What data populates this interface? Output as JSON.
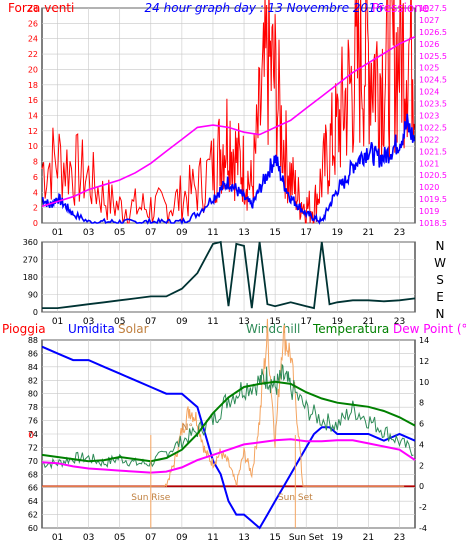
{
  "colors": {
    "background": "#ffffff",
    "frame": "#000000",
    "grid": "#c8c8c8",
    "wind": "#ff0000",
    "gust": "#0000ff",
    "pressure": "#ff00ff",
    "direction": "#003333",
    "pioggia": "#ff0000",
    "umidita": "#0000ff",
    "solar": "#f4a460",
    "windchill": "#2e8b57",
    "temperatura": "#008000",
    "dewpoint": "#ff00ff",
    "sun": "#f4a460"
  },
  "chart_data": [
    {
      "type": "line",
      "title": "24 hour graph day : 13 Novembre 2016",
      "ylabel_left": "Forza venti",
      "ylabel_right": "Pressione",
      "x_ticks": [
        "01",
        "03",
        "05",
        "07",
        "09",
        "11",
        "13",
        "15",
        "17",
        "19",
        "21",
        "23"
      ],
      "xlim": [
        0,
        24
      ],
      "ylim_left": [
        0,
        28
      ],
      "ylim_right": [
        1018.5,
        1027.5
      ],
      "yticks_left": [
        "0",
        "2",
        "4",
        "6",
        "8",
        "10",
        "12",
        "14",
        "16",
        "18",
        "20",
        "22",
        "24",
        "26",
        "28"
      ],
      "yticks_right": [
        "1018.5",
        "1019",
        "1019.5",
        "1020",
        "1020.5",
        "1021",
        "1021.5",
        "1022",
        "1022.5",
        "1023",
        "1023.5",
        "1024",
        "1024.5",
        "1025",
        "1025.5",
        "1026",
        "1026.5",
        "1027",
        "1027.5"
      ],
      "series": [
        {
          "name": "Forza venti",
          "axis": "left",
          "style": "spiky",
          "x": [
            0,
            1,
            2,
            3,
            4,
            5,
            6,
            7,
            8,
            9,
            10,
            11,
            11.5,
            12,
            12.5,
            13,
            13.5,
            14,
            14.5,
            15,
            15.5,
            16,
            16.5,
            17,
            17.5,
            18,
            18.5,
            19,
            19.5,
            20,
            20.5,
            21,
            21.5,
            22,
            22.5,
            23,
            23.5,
            24
          ],
          "y": [
            5,
            6,
            5,
            4,
            2,
            1,
            1,
            1,
            1,
            2,
            3,
            5,
            7,
            9,
            6,
            5,
            3,
            10,
            16,
            14,
            8,
            4,
            2,
            1,
            1,
            4,
            7,
            9,
            12,
            14,
            16,
            17,
            15,
            15,
            16,
            17,
            18,
            17
          ]
        },
        {
          "name": "Raffica",
          "axis": "left",
          "style": "smooth",
          "x": [
            0,
            0.5,
            1,
            1.5,
            2,
            3,
            4,
            5,
            6,
            7,
            8,
            9,
            10,
            11,
            11.5,
            12,
            12.5,
            13,
            13.5,
            14,
            14.5,
            15,
            15.5,
            16,
            16.5,
            17,
            17.5,
            18,
            18.5,
            19,
            19.5,
            20,
            20.5,
            21,
            21.5,
            22,
            22.5,
            23,
            23.5,
            24
          ],
          "y": [
            3,
            2,
            3,
            2,
            1,
            0,
            0,
            0,
            0,
            0,
            0,
            0,
            1,
            3,
            4,
            5,
            4,
            3,
            2,
            4,
            6,
            8,
            5,
            3,
            2,
            1,
            0.5,
            0,
            2,
            4,
            5,
            7,
            8,
            9,
            8,
            8,
            9,
            10,
            12,
            10
          ]
        },
        {
          "name": "Pressione",
          "axis": "right",
          "style": "smooth",
          "x": [
            0,
            1,
            2,
            3,
            4,
            5,
            6,
            7,
            8,
            9,
            10,
            11,
            12,
            13,
            14,
            15,
            16,
            17,
            18,
            19,
            20,
            21,
            22,
            23,
            24
          ],
          "y": [
            1019.2,
            1019.4,
            1019.6,
            1019.9,
            1020.1,
            1020.3,
            1020.6,
            1021.0,
            1021.5,
            1022.0,
            1022.5,
            1022.6,
            1022.5,
            1022.3,
            1022.2,
            1022.5,
            1022.8,
            1023.3,
            1023.8,
            1024.3,
            1024.8,
            1025.2,
            1025.6,
            1026.0,
            1026.3
          ]
        }
      ]
    },
    {
      "type": "line",
      "ylabel_right": "N W S E N",
      "x_ticks": [
        "01",
        "03",
        "05",
        "07",
        "09",
        "11",
        "13",
        "15",
        "17",
        "19",
        "21",
        "23"
      ],
      "xlim": [
        0,
        24
      ],
      "ylim": [
        0,
        360
      ],
      "yticks": [
        "0",
        "90",
        "180",
        "270",
        "360"
      ],
      "series": [
        {
          "name": "Direzione vento",
          "x": [
            0,
            1,
            2,
            3,
            4,
            5,
            6,
            7,
            8,
            9,
            10,
            11,
            11.5,
            12,
            12.5,
            13,
            13.5,
            14,
            14.5,
            15,
            15.5,
            16,
            16.5,
            17,
            17.5,
            18,
            18.5,
            19,
            20,
            21,
            22,
            23,
            24
          ],
          "y": [
            20,
            20,
            30,
            40,
            50,
            60,
            70,
            80,
            80,
            120,
            200,
            350,
            360,
            30,
            350,
            340,
            20,
            360,
            40,
            30,
            40,
            50,
            40,
            30,
            20,
            360,
            40,
            50,
            60,
            60,
            55,
            60,
            70
          ]
        }
      ]
    },
    {
      "type": "line",
      "legend": [
        "Pioggia",
        "Umidita",
        "Solar",
        "Windchill",
        "Temperatura",
        "Dew Point (°C)"
      ],
      "x_ticks": [
        "01",
        "03",
        "05",
        "07",
        "09",
        "11",
        "13",
        "15",
        "Sun Set",
        "19",
        "21",
        "23"
      ],
      "xlim": [
        0,
        24
      ],
      "ylim_left": [
        60,
        88
      ],
      "ylim_right": [
        -4,
        14
      ],
      "yticks_left": [
        "60",
        "62",
        "64",
        "66",
        "68",
        "70",
        "72",
        "74",
        "76",
        "78",
        "80",
        "82",
        "84",
        "86",
        "88"
      ],
      "yticks_right": [
        "-4",
        "-2",
        "0",
        "2",
        "4",
        "6",
        "8",
        "10",
        "12",
        "14"
      ],
      "pioggia_value": "0",
      "annotations": [
        {
          "text": "Sun Rise",
          "x": 7
        },
        {
          "text": "Sun Set",
          "x": 16.3
        },
        {
          "text": "N°",
          "x": 10
        }
      ],
      "series": [
        {
          "name": "Umidita",
          "axis": "left",
          "x": [
            0,
            1,
            2,
            3,
            4,
            5,
            6,
            7,
            8,
            9,
            10,
            10.5,
            11,
            11.5,
            12,
            12.5,
            13,
            13.5,
            14,
            14.5,
            15,
            15.5,
            16,
            16.5,
            17,
            17.5,
            18,
            18.5,
            19,
            20,
            21,
            22,
            23,
            24
          ],
          "y": [
            87,
            86,
            85,
            85,
            84,
            83,
            82,
            81,
            80,
            80,
            78,
            74,
            70,
            68,
            64,
            62,
            62,
            61,
            60,
            62,
            64,
            66,
            68,
            70,
            72,
            74,
            75,
            75,
            74,
            74,
            74,
            73,
            74,
            73
          ]
        },
        {
          "name": "Solar",
          "axis": "right",
          "x": [
            0,
            1,
            2,
            3,
            4,
            5,
            6,
            7,
            7.5,
            8,
            8.5,
            9,
            9.5,
            10,
            10.5,
            11,
            11.5,
            12,
            12.5,
            13,
            13.5,
            14,
            14.5,
            15,
            15.5,
            16,
            16.5,
            17,
            24
          ],
          "y": [
            -4,
            -4,
            -4,
            -4,
            -4,
            -4,
            -4,
            -4,
            -2,
            0,
            2,
            5,
            7,
            6,
            3,
            2,
            3,
            2,
            0,
            3,
            1,
            6,
            14,
            4,
            14,
            12,
            5,
            -4,
            -4
          ]
        },
        {
          "name": "Windchill",
          "axis": "right",
          "x": [
            0,
            1,
            2,
            3,
            4,
            5,
            6,
            7,
            8,
            9,
            10,
            11,
            12,
            13,
            14,
            14.5,
            15,
            15.5,
            16,
            17,
            18,
            19,
            20,
            21,
            22,
            23,
            24
          ],
          "y": [
            2,
            2,
            2.5,
            2.5,
            2,
            2.5,
            2,
            2,
            3,
            4,
            5,
            6,
            8,
            9,
            9.5,
            10,
            9,
            10,
            9,
            7,
            6,
            5.5,
            7,
            6,
            5,
            4,
            3
          ]
        },
        {
          "name": "Temperatura",
          "axis": "right",
          "x": [
            0,
            1,
            2,
            3,
            4,
            5,
            6,
            7,
            8,
            9,
            10,
            11,
            12,
            13,
            14,
            15,
            16,
            17,
            18,
            19,
            20,
            21,
            22,
            23,
            24
          ],
          "y": [
            3,
            2.8,
            2.6,
            2.4,
            2.5,
            2.8,
            2.6,
            2.4,
            2.7,
            3.5,
            5,
            7,
            8.5,
            9.5,
            9.8,
            10,
            9.8,
            9,
            8.4,
            8,
            7.8,
            7.6,
            7.2,
            6.6,
            5.8
          ]
        },
        {
          "name": "Dew Point",
          "axis": "right",
          "x": [
            0,
            1,
            2,
            3,
            4,
            5,
            6,
            7,
            8,
            9,
            10,
            11,
            12,
            13,
            14,
            15,
            16,
            17,
            18,
            19,
            20,
            21,
            22,
            23,
            24
          ],
          "y": [
            2.3,
            2.2,
            1.9,
            1.7,
            1.6,
            1.5,
            1.4,
            1.3,
            1.4,
            1.8,
            2.5,
            3,
            3.5,
            4,
            4.2,
            4.4,
            4.5,
            4.3,
            4.3,
            4.4,
            4.4,
            4.1,
            3.8,
            3.5,
            2.5
          ]
        }
      ]
    }
  ]
}
